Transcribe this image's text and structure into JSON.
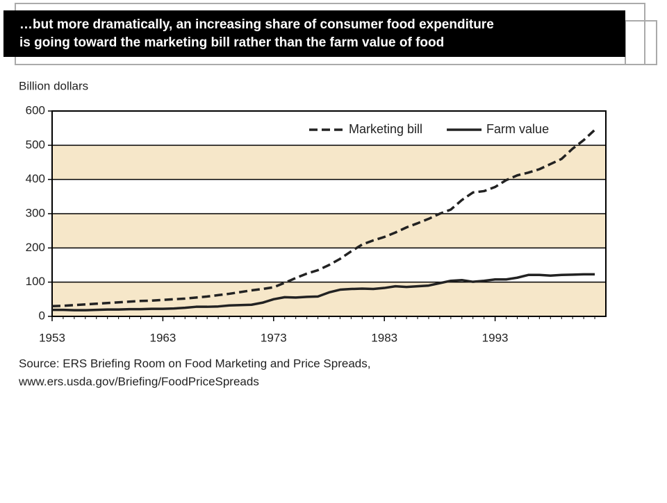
{
  "chart_data": {
    "type": "line",
    "title": [
      "…but more dramatically, an increasing share of consumer food expenditure",
      "is going toward the marketing bill rather than the farm value of food"
    ],
    "y_label": "Billion dollars",
    "source": [
      "Source: ERS Briefing Room on Food Marketing and Price Spreads,",
      "www.ers.usda.gov/Briefing/FoodPriceSpreads"
    ],
    "x": [
      1953,
      1954,
      1955,
      1956,
      1957,
      1958,
      1959,
      1960,
      1961,
      1962,
      1963,
      1964,
      1965,
      1966,
      1967,
      1968,
      1969,
      1970,
      1971,
      1972,
      1973,
      1974,
      1975,
      1976,
      1977,
      1978,
      1979,
      1980,
      1981,
      1982,
      1983,
      1984,
      1985,
      1986,
      1987,
      1988,
      1989,
      1990,
      1991,
      1992,
      1993,
      1994,
      1995,
      1996,
      1997,
      1998,
      1999,
      2000,
      2001,
      2002
    ],
    "series": [
      {
        "name": "Marketing bill",
        "color": "#222222",
        "dash": true,
        "values": [
          30,
          31,
          33,
          35,
          37,
          39,
          41,
          43,
          45,
          46,
          48,
          50,
          52,
          55,
          58,
          62,
          66,
          71,
          76,
          80,
          85,
          98,
          112,
          125,
          135,
          150,
          168,
          190,
          210,
          222,
          232,
          245,
          260,
          272,
          285,
          300,
          312,
          340,
          362,
          366,
          378,
          398,
          412,
          420,
          430,
          445,
          460,
          490,
          515,
          545
        ]
      },
      {
        "name": "Farm value",
        "color": "#222222",
        "dash": false,
        "values": [
          19,
          19,
          18,
          18,
          19,
          20,
          20,
          21,
          21,
          22,
          22,
          23,
          25,
          28,
          28,
          29,
          32,
          33,
          34,
          40,
          50,
          56,
          55,
          57,
          58,
          70,
          78,
          80,
          81,
          80,
          83,
          88,
          86,
          88,
          90,
          97,
          104,
          106,
          101,
          104,
          108,
          108,
          113,
          121,
          121,
          119,
          121,
          122,
          123,
          123
        ]
      }
    ],
    "xlim": [
      1953,
      2003
    ],
    "xticks": [
      1953,
      1963,
      1973,
      1983,
      1993
    ],
    "ylim": [
      0,
      600
    ],
    "yticks": [
      0,
      100,
      200,
      300,
      400,
      500,
      600
    ],
    "bands": true,
    "band_color": "#f6e7c9",
    "legend": "top-right"
  }
}
